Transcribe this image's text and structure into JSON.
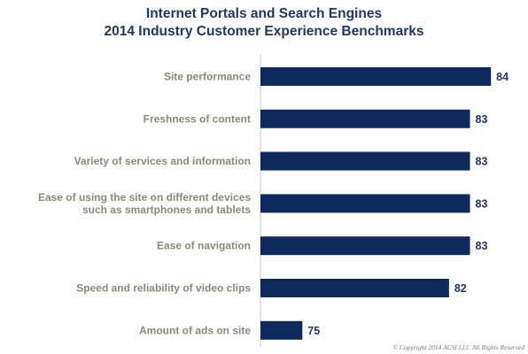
{
  "chart_data": {
    "type": "bar",
    "orientation": "horizontal",
    "title": "Internet Portals and Search Engines",
    "subtitle": "2014 Industry Customer Experience Benchmarks",
    "categories": [
      [
        "Site performance"
      ],
      [
        "Freshness of content"
      ],
      [
        "Variety of services and information"
      ],
      [
        "Ease of using the site on different devices",
        "such as smartphones and tablets"
      ],
      [
        "Ease of navigation"
      ],
      [
        "Speed and reliability of video clips"
      ],
      [
        "Amount of ads on site"
      ]
    ],
    "values": [
      84,
      83,
      83,
      83,
      83,
      82,
      75
    ],
    "xlim": [
      73,
      84.5
    ],
    "grid": false,
    "bar_color": "#0e2a5c",
    "label_color": "#8a8a78",
    "title_color": "#1f3864"
  },
  "copyright": "© Copyright 2014 ACSI LLC All Rights Reserved"
}
